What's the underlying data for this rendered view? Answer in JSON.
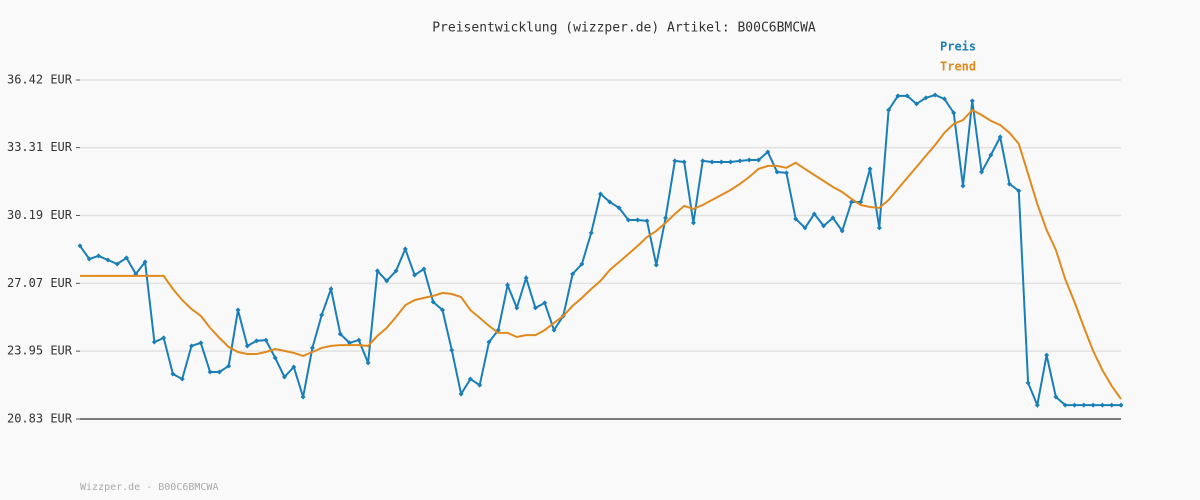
{
  "chart_data": {
    "type": "line",
    "title": "Preisentwicklung (wizzper.de) Artikel: B00C6BMCWA",
    "footer": "Wizzper.de - B00C6BMCWA",
    "ylim": [
      20.83,
      36.42
    ],
    "yticks": [
      {
        "value": 20.83,
        "label": "20.83 EUR"
      },
      {
        "value": 23.95,
        "label": "23.95 EUR"
      },
      {
        "value": 27.07,
        "label": "27.07 EUR"
      },
      {
        "value": 30.19,
        "label": "30.19 EUR"
      },
      {
        "value": 33.31,
        "label": "33.31 EUR"
      },
      {
        "value": 36.42,
        "label": "36.42 EUR"
      }
    ],
    "grid": true,
    "legend": "top-right",
    "series": [
      {
        "name": "Preis",
        "color": "#1a7fb8",
        "markers": true,
        "values": [
          28.79,
          28.19,
          28.33,
          28.14,
          27.96,
          28.24,
          27.5,
          28.05,
          24.37,
          24.56,
          22.9,
          22.67,
          24.19,
          24.33,
          22.99,
          22.99,
          23.27,
          25.84,
          24.19,
          24.42,
          24.46,
          23.64,
          22.76,
          23.22,
          21.84,
          24.1,
          25.61,
          26.81,
          24.74,
          24.33,
          24.46,
          23.41,
          27.64,
          27.18,
          27.64,
          28.65,
          27.45,
          27.73,
          26.21,
          25.84,
          24.0,
          21.98,
          22.67,
          22.39,
          24.37,
          24.92,
          26.99,
          25.94,
          27.32,
          25.94,
          26.17,
          24.92,
          25.57,
          27.5,
          27.96,
          29.39,
          31.18,
          30.81,
          30.54,
          29.98,
          29.98,
          29.94,
          27.91,
          30.08,
          32.7,
          32.65,
          29.85,
          32.7,
          32.65,
          32.65,
          32.65,
          32.7,
          32.74,
          32.74,
          33.11,
          32.19,
          32.15,
          30.03,
          29.62,
          30.26,
          29.71,
          30.08,
          29.48,
          30.81,
          30.81,
          32.33,
          29.62,
          35.04,
          35.69,
          35.69,
          35.32,
          35.6,
          35.73,
          35.55,
          34.91,
          31.55,
          35.46,
          32.19,
          32.97,
          33.8,
          31.64,
          31.32,
          22.49,
          21.47,
          23.77,
          21.84,
          21.47,
          21.47,
          21.47,
          21.47,
          21.47,
          21.47,
          21.47
        ]
      },
      {
        "name": "Trend",
        "color": "#e08a1e",
        "markers": false,
        "values": [
          27.41,
          27.41,
          27.41,
          27.41,
          27.41,
          27.41,
          27.41,
          27.41,
          27.41,
          27.41,
          26.81,
          26.3,
          25.89,
          25.57,
          25.02,
          24.56,
          24.14,
          23.91,
          23.82,
          23.82,
          23.91,
          24.05,
          23.96,
          23.87,
          23.73,
          23.91,
          24.1,
          24.19,
          24.23,
          24.23,
          24.23,
          24.19,
          24.65,
          25.02,
          25.52,
          26.07,
          26.3,
          26.4,
          26.49,
          26.63,
          26.58,
          26.44,
          25.84,
          25.48,
          25.11,
          24.79,
          24.79,
          24.6,
          24.69,
          24.69,
          24.92,
          25.25,
          25.57,
          26.03,
          26.4,
          26.81,
          27.18,
          27.68,
          28.05,
          28.42,
          28.79,
          29.2,
          29.48,
          29.85,
          30.26,
          30.63,
          30.49,
          30.67,
          30.9,
          31.13,
          31.36,
          31.64,
          31.96,
          32.33,
          32.47,
          32.47,
          32.38,
          32.61,
          32.33,
          32.05,
          31.78,
          31.5,
          31.27,
          30.95,
          30.67,
          30.58,
          30.54,
          30.9,
          31.41,
          31.92,
          32.42,
          32.93,
          33.43,
          33.99,
          34.4,
          34.58,
          35.04,
          34.81,
          34.54,
          34.35,
          33.99,
          33.48,
          32.1,
          30.72,
          29.52,
          28.6,
          27.27,
          26.21,
          25.06,
          23.96,
          23.08,
          22.35,
          21.75
        ]
      }
    ]
  }
}
